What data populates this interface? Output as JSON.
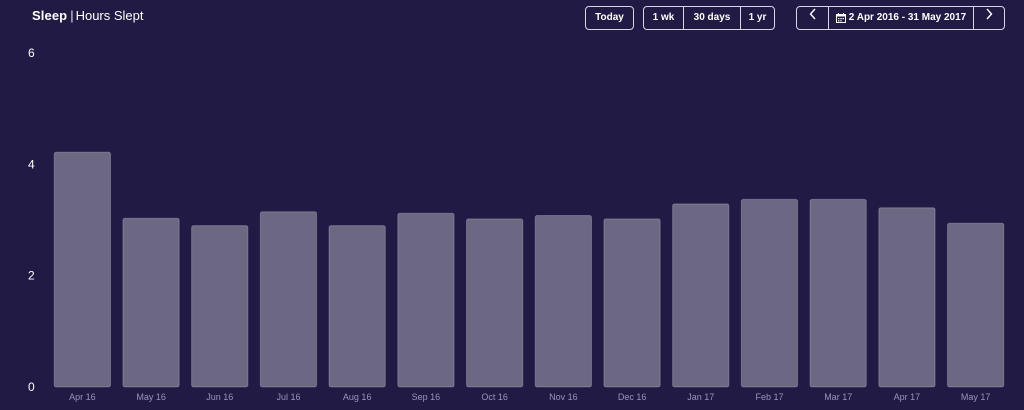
{
  "header": {
    "title_bold": "Sleep",
    "title_separator": "|",
    "title_sub": "Hours Slept"
  },
  "controls": {
    "today_label": "Today",
    "range_options": [
      "1 wk",
      "30 days",
      "1 yr"
    ],
    "prev_icon": "chevron-left-icon",
    "next_icon": "chevron-right-icon",
    "calendar_icon": "calendar-icon",
    "date_range_label": "2 Apr 2016 - 31 May 2017"
  },
  "chart_data": {
    "type": "bar",
    "title": "",
    "xlabel": "",
    "ylabel": "",
    "ylim": [
      0,
      6
    ],
    "yticks": [
      0,
      2,
      4,
      6
    ],
    "grid": false,
    "categories": [
      "Apr 16",
      "May 16",
      "Jun 16",
      "Jul 16",
      "Aug 16",
      "Sep 16",
      "Oct 16",
      "Nov 16",
      "Dec 16",
      "Jan 17",
      "Feb 17",
      "Mar 17",
      "Apr 17",
      "May 17"
    ],
    "values": [
      4.22,
      3.03,
      2.9,
      3.15,
      2.9,
      3.12,
      3.02,
      3.08,
      3.02,
      3.29,
      3.37,
      3.37,
      3.22,
      2.94
    ],
    "colors": {
      "bar": "#6c6884",
      "background": "#201a45"
    }
  }
}
